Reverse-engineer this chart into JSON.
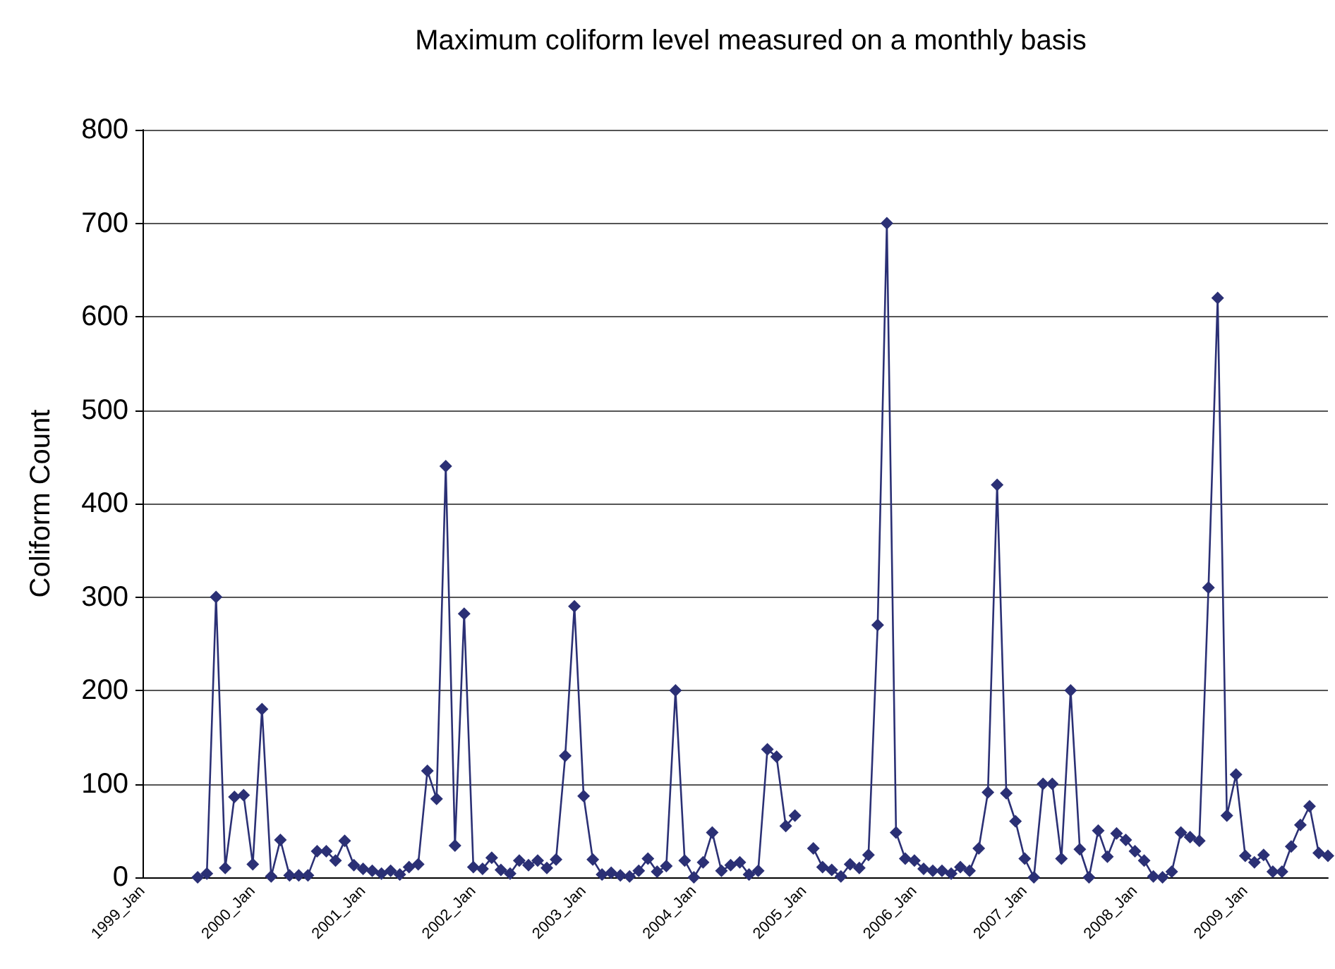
{
  "chart_data": {
    "type": "line",
    "title": "Maximum coliform level measured on a monthly basis",
    "ylabel": "Coliform Count",
    "categories": [
      "1999_Jan",
      null,
      null,
      null,
      null,
      null,
      null,
      null,
      null,
      null,
      null,
      null,
      "2000_Jan",
      null,
      null,
      null,
      null,
      null,
      null,
      null,
      null,
      null,
      null,
      null,
      "2001_Jan",
      null,
      null,
      null,
      null,
      null,
      null,
      null,
      null,
      null,
      null,
      null,
      "2002_Jan",
      null,
      null,
      null,
      null,
      null,
      null,
      null,
      null,
      null,
      null,
      null,
      "2003_Jan",
      null,
      null,
      null,
      null,
      null,
      null,
      null,
      null,
      null,
      null,
      null,
      "2004_Jan",
      null,
      null,
      null,
      null,
      null,
      null,
      null,
      null,
      null,
      null,
      null,
      "2005_Jan",
      null,
      null,
      null,
      null,
      null,
      null,
      null,
      null,
      null,
      null,
      null,
      "2006_Jan",
      null,
      null,
      null,
      null,
      null,
      null,
      null,
      null,
      null,
      null,
      null,
      "2007_Jan",
      null,
      null,
      null,
      null,
      null,
      null,
      null,
      null,
      null,
      null,
      null,
      "2008_Jan",
      null,
      null,
      null,
      null,
      null,
      null,
      null,
      null,
      null,
      null,
      null,
      "2009_Jan",
      null,
      null,
      null,
      null,
      null,
      null,
      null,
      null,
      null
    ],
    "series": [
      {
        "color": "#2b3075",
        "values": [
          null,
          null,
          null,
          null,
          null,
          null,
          0,
          4,
          300,
          10,
          86,
          88,
          14,
          180,
          1,
          40,
          2,
          2,
          2,
          28,
          28,
          18,
          39,
          13,
          9,
          7,
          4,
          7,
          3,
          11,
          14,
          114,
          84,
          440,
          34,
          282,
          11,
          9,
          21,
          8,
          4,
          18,
          13,
          18,
          10,
          19,
          130,
          290,
          87,
          19,
          3,
          5,
          2,
          1,
          7,
          20,
          6,
          12,
          200,
          18,
          0,
          16,
          48,
          7,
          13,
          16,
          3,
          7,
          137,
          129,
          55,
          66,
          null,
          31,
          11,
          8,
          1,
          14,
          10,
          24,
          270,
          700,
          48,
          20,
          18,
          9,
          7,
          7,
          4,
          11,
          7,
          31,
          91,
          420,
          90,
          60,
          20,
          0,
          100,
          100,
          20,
          200,
          30,
          0,
          50,
          22,
          47,
          40,
          28,
          18,
          1,
          0,
          6,
          48,
          43,
          39,
          310,
          620,
          66,
          110,
          23,
          16,
          24,
          6,
          6,
          33,
          56,
          76,
          26,
          23
        ]
      }
    ],
    "ylim": [
      0,
      800
    ],
    "yticks": [
      0,
      100,
      200,
      300,
      400,
      500,
      600,
      700,
      800
    ],
    "grid": "y",
    "marker": "diamond",
    "line_style": "solid"
  }
}
